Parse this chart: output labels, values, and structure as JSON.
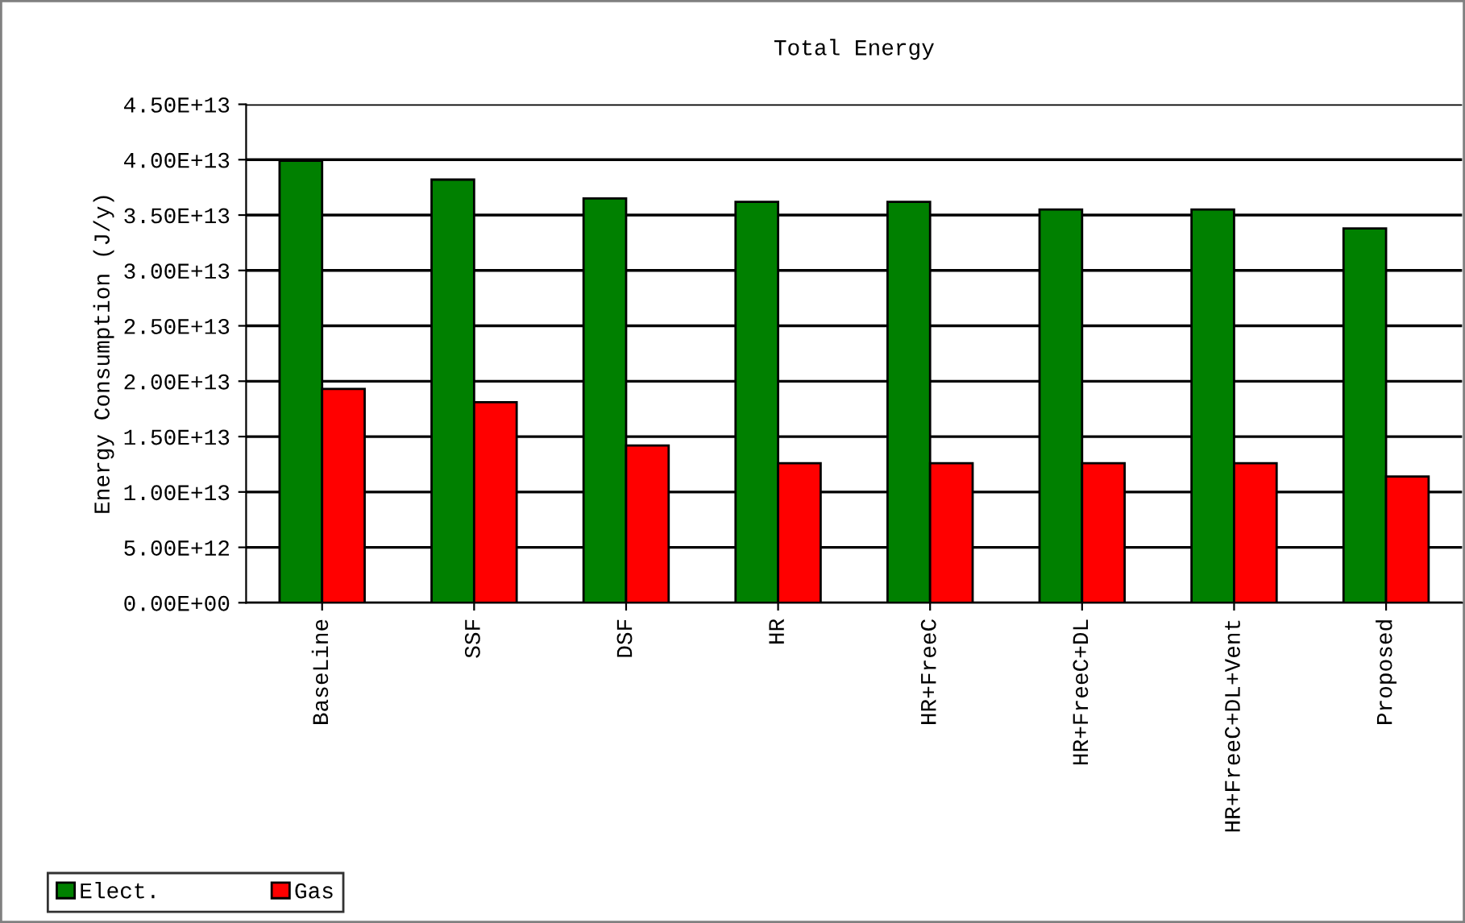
{
  "chart_data": {
    "type": "bar",
    "title": "Total Energy",
    "ylabel": "Energy Consumption (J/y)",
    "categories": [
      "BaseLine",
      "SSF",
      "DSF",
      "HR",
      "HR+FreeC",
      "HR+FreeC+DL",
      "HR+FreeC+DL+Vent",
      "Proposed"
    ],
    "series": [
      {
        "name": "Elect.",
        "color": "#008000",
        "values": [
          39900000000000.0,
          38200000000000.0,
          36500000000000.0,
          36200000000000.0,
          36200000000000.0,
          35500000000000.0,
          35500000000000.0,
          33800000000000.0
        ]
      },
      {
        "name": "Gas",
        "color": "#ff0000",
        "values": [
          19300000000000.0,
          18100000000000.0,
          14200000000000.0,
          12600000000000.0,
          12600000000000.0,
          12600000000000.0,
          12600000000000.0,
          11400000000000.0
        ]
      }
    ],
    "ylim": [
      0,
      45000000000000.0
    ],
    "yticks": [
      {
        "value": 0,
        "label": "0.00E+00"
      },
      {
        "value": 5000000000000.0,
        "label": "5.00E+12"
      },
      {
        "value": 10000000000000.0,
        "label": "1.00E+13"
      },
      {
        "value": 15000000000000.0,
        "label": "1.50E+13"
      },
      {
        "value": 20000000000000.0,
        "label": "2.00E+13"
      },
      {
        "value": 25000000000000.0,
        "label": "2.50E+13"
      },
      {
        "value": 30000000000000.0,
        "label": "3.00E+13"
      },
      {
        "value": 35000000000000.0,
        "label": "3.50E+13"
      },
      {
        "value": 40000000000000.0,
        "label": "4.00E+13"
      },
      {
        "value": 45000000000000.0,
        "label": "4.50E+13"
      }
    ],
    "grid": "y",
    "legend": "bottom left"
  }
}
